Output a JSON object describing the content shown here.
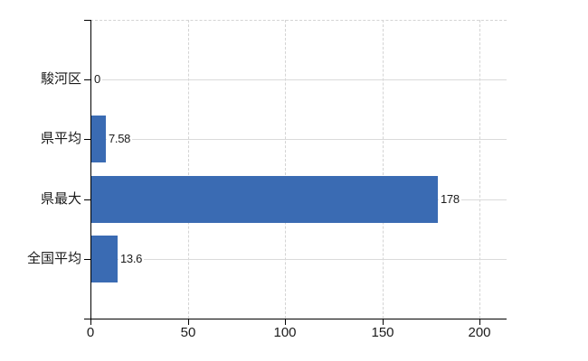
{
  "chart_data": {
    "type": "bar",
    "orientation": "horizontal",
    "title": "",
    "categories": [
      "駿河区",
      "県平均",
      "県最大",
      "全国平均"
    ],
    "values": [
      0,
      7.58,
      178,
      13.6
    ],
    "value_labels": [
      "0",
      "7.58",
      "178",
      "13.6"
    ],
    "x_ticks": [
      0,
      50,
      100,
      150,
      200
    ],
    "x_tick_labels": [
      "0",
      "50",
      "100",
      "150",
      "200"
    ],
    "xlim": [
      0,
      213.8
    ],
    "legend": null,
    "grid": {
      "vertical_gridlines": "dashed",
      "category_gridlines": "solid",
      "top_border": "dashed"
    },
    "colors": {
      "bar": "#3a6bb3",
      "vertical_grid": "#d4d4d4",
      "category_grid": "#dadada",
      "axis": "#000000",
      "text": "#1b1b1b",
      "background": "#ffffff"
    }
  }
}
